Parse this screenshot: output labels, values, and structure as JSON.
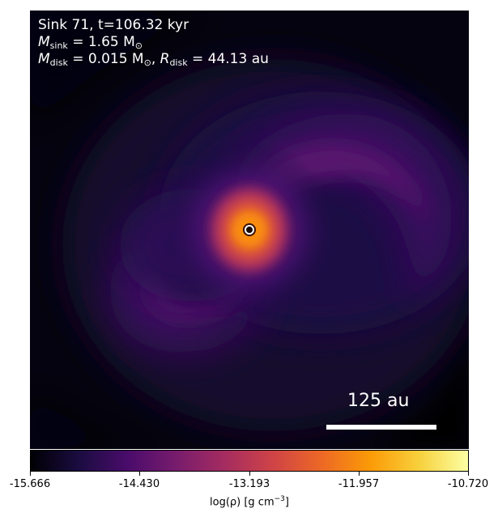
{
  "annotations": {
    "title": "Sink 71, t=106.32 kyr",
    "m_sink_symbol": "M",
    "m_sink_sub": "sink",
    "m_sink_value": " = 1.65 M",
    "m_sink_unit_sub": "⊙",
    "m_disk_symbol": "M",
    "m_disk_sub": "disk",
    "m_disk_value": " = 0.015 M",
    "m_disk_unit_sub": "⊙",
    "r_disk_prefix": ", ",
    "r_disk_symbol": "R",
    "r_disk_sub": "disk",
    "r_disk_value": " = 44.13 au"
  },
  "scalebar": {
    "label": "125 au"
  },
  "colorbar": {
    "label_main": "log(ρ) [g cm",
    "label_exp": "−3",
    "label_end": "]",
    "colormap": "inferno",
    "range": [
      -15.666,
      -10.72
    ],
    "ticks": [
      "-15.666",
      "-14.430",
      "-13.193",
      "-11.957",
      "-10.720"
    ]
  },
  "colors": {
    "background": "#04030f",
    "core": "#f97c12",
    "envelope": "#541167",
    "sink_marker": "#ffffff"
  }
}
